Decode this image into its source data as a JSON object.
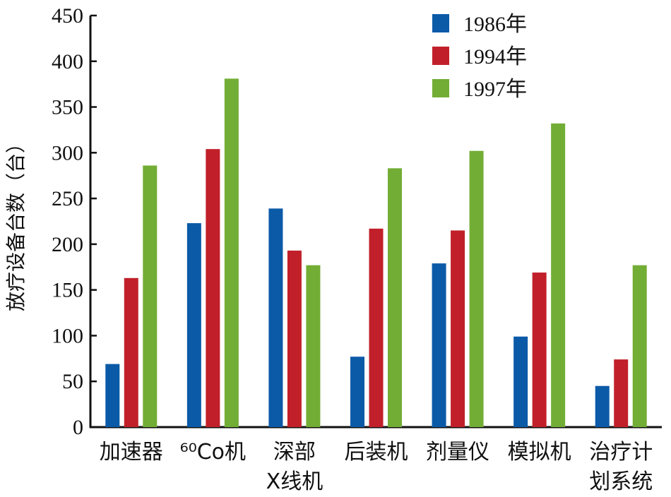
{
  "chart_data": {
    "type": "bar",
    "title": "",
    "xlabel": "",
    "ylabel": "放疗设备台数（台）",
    "ylim": [
      0,
      450
    ],
    "yticks": [
      0,
      50,
      100,
      150,
      200,
      250,
      300,
      350,
      400,
      450
    ],
    "categories": [
      [
        "加速器"
      ],
      [
        "⁶⁰Co机"
      ],
      [
        "深部",
        "X线机"
      ],
      [
        "后装机"
      ],
      [
        "剂量仪"
      ],
      [
        "模拟机"
      ],
      [
        "治疗计",
        "划系统"
      ]
    ],
    "series": [
      {
        "name": "1986年",
        "color": "#0b5aa8",
        "values": [
          69,
          223,
          239,
          77,
          179,
          99,
          45
        ]
      },
      {
        "name": "1994年",
        "color": "#c1202a",
        "values": [
          163,
          304,
          193,
          217,
          215,
          169,
          74
        ]
      },
      {
        "name": "1997年",
        "color": "#72ad35",
        "values": [
          286,
          381,
          177,
          283,
          302,
          332,
          177
        ]
      }
    ],
    "legend": "top-right",
    "grid": false
  }
}
